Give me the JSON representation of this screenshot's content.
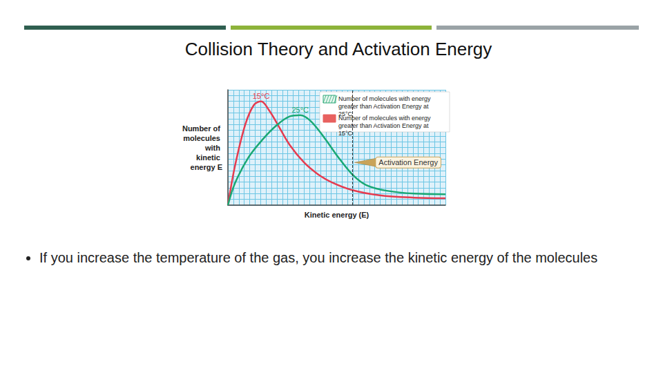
{
  "title": "Collision Theory and Activation Energy",
  "bullets": [
    "If you increase the temperature of the gas, you increase the kinetic energy of the molecules"
  ],
  "chart_data": {
    "type": "line",
    "x_label": "Kinetic energy (E)",
    "y_label": "Number of molecules with kinetic energy E",
    "xlim": [
      0,
      40
    ],
    "ylim": [
      0,
      20
    ],
    "xticks": [
      0,
      1,
      2,
      3,
      4,
      5,
      6,
      7,
      8,
      9,
      10,
      11,
      12,
      13,
      14,
      15,
      16,
      17,
      18,
      19,
      20,
      21,
      22,
      23,
      24,
      25,
      26,
      27,
      28,
      29,
      30,
      31,
      32,
      33,
      34,
      35,
      36,
      37,
      38,
      39,
      40
    ],
    "yticks": [
      0,
      1,
      2,
      3,
      4,
      5,
      6,
      7,
      8,
      9,
      10,
      11,
      12,
      13,
      14,
      15,
      16,
      17,
      18,
      19,
      20
    ],
    "grid": true,
    "tick_labels": false,
    "series": [
      {
        "name": "15°C",
        "color": "#e63b4f",
        "x": [
          0,
          1.3,
          3.2,
          4.8,
          6.1,
          7.6,
          9.5,
          11.4,
          14,
          16.5,
          19,
          22.9,
          27.9,
          34.3,
          40
        ],
        "values": [
          0,
          6.8,
          14,
          17.4,
          18,
          16.4,
          13.4,
          10.4,
          7.4,
          5.4,
          4,
          2.6,
          1.7,
          1.3,
          1.2
        ]
      },
      {
        "name": "25°C",
        "color": "#1aa874",
        "x": [
          0,
          1.3,
          3.8,
          6.3,
          8.9,
          11.4,
          13.3,
          15.2,
          17.8,
          20.3,
          22.9,
          25.4,
          29.2,
          34.3,
          40
        ],
        "values": [
          0,
          3.8,
          8.3,
          11.3,
          13.8,
          15.4,
          15.6,
          14.6,
          11.6,
          8.3,
          5.3,
          3.5,
          2.5,
          2,
          1.9
        ]
      }
    ],
    "annotations": [
      {
        "label": "Activation Energy",
        "x": 22.9
      }
    ],
    "legend_entries": [
      {
        "label": "Number of molecules with energy greater than Activation Energy at 25°C",
        "color": "#2aa876"
      },
      {
        "label": "Number of molecules with energy greater than Activation Energy at 15°C",
        "color": "#e8615f"
      }
    ]
  }
}
